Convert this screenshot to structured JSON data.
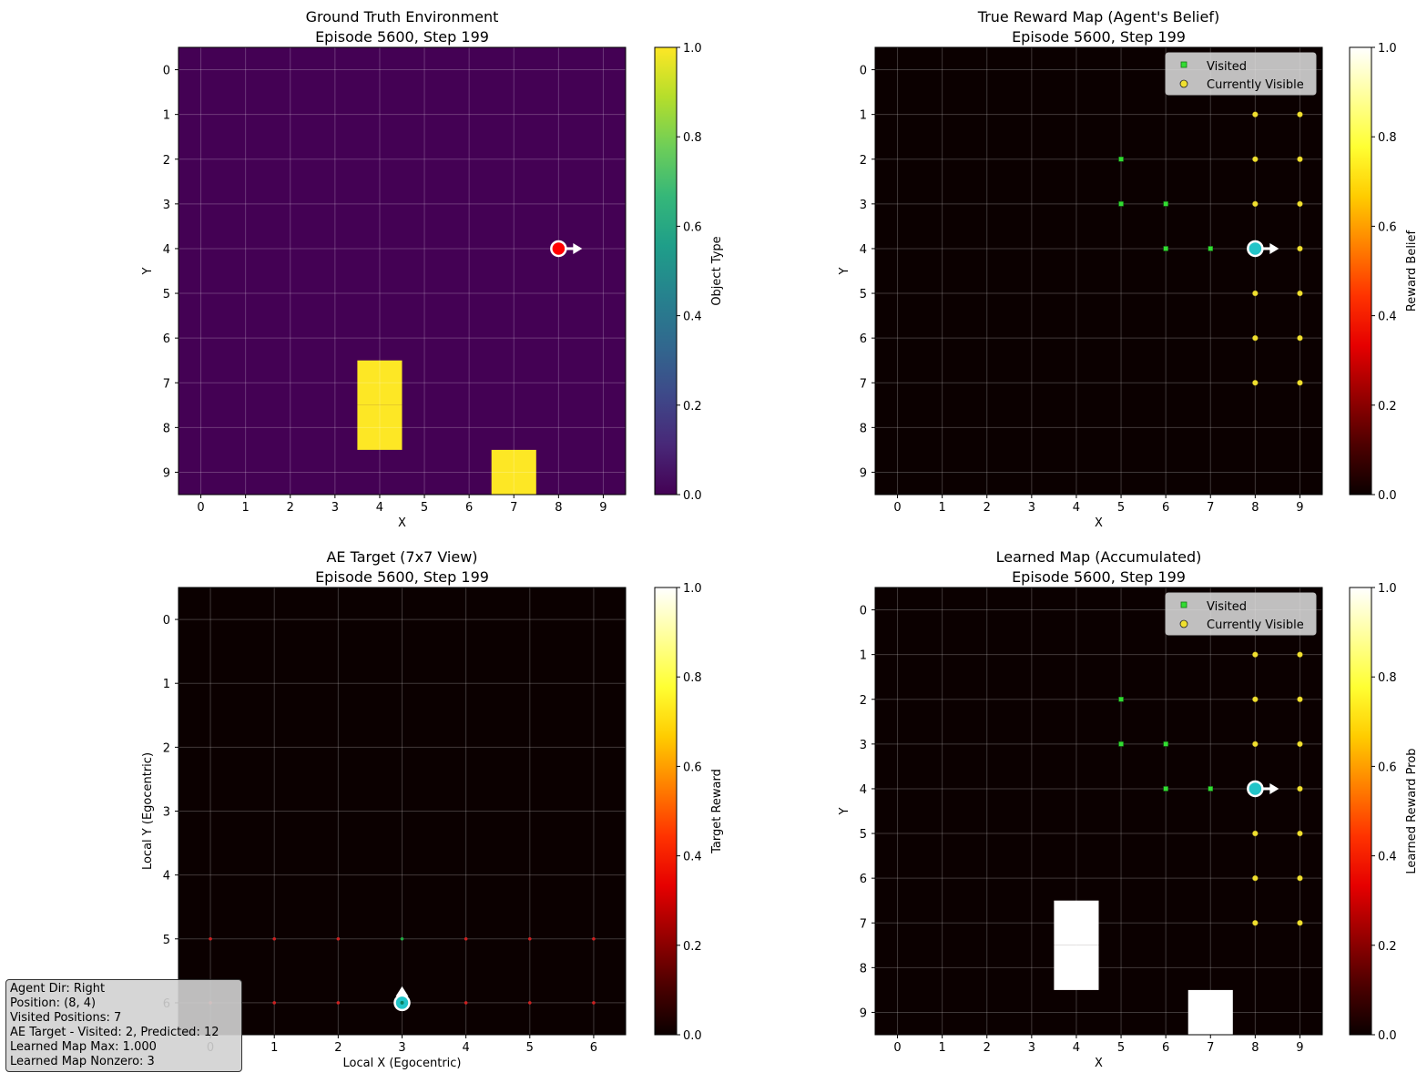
{
  "info": {
    "agent_dir": "Agent Dir: Right",
    "position": "Position: (8, 4)",
    "visited": "Visited Positions: 7",
    "ae_target": "AE Target - Visited: 2, Predicted: 12",
    "map_max": "Learned Map Max: 1.000",
    "map_nonzero": "Learned Map Nonzero: 3"
  },
  "chart_data": [
    {
      "type": "heatmap",
      "title": "Ground Truth Environment",
      "subtitle": "Episode 5600, Step 199",
      "xlabel": "X",
      "ylabel": "Y",
      "xticks": [
        "0",
        "1",
        "2",
        "3",
        "4",
        "5",
        "6",
        "7",
        "8",
        "9"
      ],
      "yticks": [
        "0",
        "1",
        "2",
        "3",
        "4",
        "5",
        "6",
        "7",
        "8",
        "9"
      ],
      "colormap": "viridis",
      "colorbar": {
        "label": "Object Type",
        "ticks": [
          "0.0",
          "0.2",
          "0.4",
          "0.6",
          "0.8",
          "1.0"
        ],
        "range": [
          0,
          1
        ]
      },
      "grid": true,
      "nonzero_cells": [
        [
          4,
          7,
          1.0
        ],
        [
          4,
          8,
          1.0
        ],
        [
          7,
          9,
          1.0
        ]
      ],
      "agent": {
        "x": 8,
        "y": 4,
        "color": "#ff0000",
        "direction": "right"
      }
    },
    {
      "type": "heatmap",
      "title": "True Reward Map (Agent's Belief)",
      "subtitle": "Episode 5600, Step 199",
      "xlabel": "X",
      "ylabel": "Y",
      "xticks": [
        "0",
        "1",
        "2",
        "3",
        "4",
        "5",
        "6",
        "7",
        "8",
        "9"
      ],
      "yticks": [
        "0",
        "1",
        "2",
        "3",
        "4",
        "5",
        "6",
        "7",
        "8",
        "9"
      ],
      "colormap": "hot",
      "colorbar": {
        "label": "Reward Belief",
        "ticks": [
          "0.0",
          "0.2",
          "0.4",
          "0.6",
          "0.8",
          "1.0"
        ],
        "range": [
          0,
          1
        ]
      },
      "grid": true,
      "nonzero_cells": [],
      "visited": [
        [
          5,
          2
        ],
        [
          5,
          3
        ],
        [
          6,
          3
        ],
        [
          6,
          4
        ],
        [
          7,
          4
        ]
      ],
      "visible": [
        [
          8,
          1
        ],
        [
          9,
          1
        ],
        [
          8,
          2
        ],
        [
          9,
          2
        ],
        [
          8,
          3
        ],
        [
          9,
          3
        ],
        [
          9,
          4
        ],
        [
          8,
          5
        ],
        [
          9,
          5
        ],
        [
          8,
          6
        ],
        [
          9,
          6
        ],
        [
          8,
          7
        ],
        [
          9,
          7
        ]
      ],
      "legend": {
        "position": "upper right",
        "visited": "Visited",
        "visible": "Currently Visible"
      },
      "agent": {
        "x": 8,
        "y": 4,
        "color": "#22c4c8",
        "direction": "right"
      }
    },
    {
      "type": "heatmap",
      "title": "AE Target (7x7 View)",
      "subtitle": "Episode 5600, Step 199",
      "xlabel": "Local X (Egocentric)",
      "ylabel": "Local Y (Egocentric)",
      "xticks": [
        "0",
        "1",
        "2",
        "3",
        "4",
        "5",
        "6"
      ],
      "yticks": [
        "0",
        "1",
        "2",
        "3",
        "4",
        "5",
        "6"
      ],
      "colormap": "hot",
      "colorbar": {
        "label": "Target Reward",
        "ticks": [
          "0.0",
          "0.2",
          "0.4",
          "0.6",
          "0.8",
          "1.0"
        ],
        "range": [
          0,
          1
        ]
      },
      "grid": true,
      "nonzero_cells": [],
      "red_points": [
        [
          0,
          5
        ],
        [
          1,
          5
        ],
        [
          2,
          5
        ],
        [
          4,
          5
        ],
        [
          5,
          5
        ],
        [
          6,
          5
        ],
        [
          0,
          6
        ],
        [
          1,
          6
        ],
        [
          2,
          6
        ],
        [
          4,
          6
        ],
        [
          5,
          6
        ],
        [
          6,
          6
        ]
      ],
      "green_points": [
        [
          3,
          5
        ],
        [
          3,
          6
        ]
      ],
      "agent": {
        "x": 3,
        "y": 6,
        "color": "#22c4c8",
        "direction": "up"
      }
    },
    {
      "type": "heatmap",
      "title": "Learned Map (Accumulated)",
      "subtitle": "Episode 5600, Step 199",
      "xlabel": "X",
      "ylabel": "Y",
      "xticks": [
        "0",
        "1",
        "2",
        "3",
        "4",
        "5",
        "6",
        "7",
        "8",
        "9"
      ],
      "yticks": [
        "0",
        "1",
        "2",
        "3",
        "4",
        "5",
        "6",
        "7",
        "8",
        "9"
      ],
      "colormap": "hot",
      "colorbar": {
        "label": "Learned Reward Prob",
        "ticks": [
          "0.0",
          "0.2",
          "0.4",
          "0.6",
          "0.8",
          "1.0"
        ],
        "range": [
          0,
          1
        ]
      },
      "grid": true,
      "nonzero_cells": [
        [
          4,
          7,
          1.0
        ],
        [
          4,
          8,
          1.0
        ],
        [
          7,
          9,
          1.0
        ]
      ],
      "visited": [
        [
          5,
          2
        ],
        [
          5,
          3
        ],
        [
          6,
          3
        ],
        [
          6,
          4
        ],
        [
          7,
          4
        ]
      ],
      "visible": [
        [
          8,
          1
        ],
        [
          9,
          1
        ],
        [
          8,
          2
        ],
        [
          9,
          2
        ],
        [
          8,
          3
        ],
        [
          9,
          3
        ],
        [
          9,
          4
        ],
        [
          8,
          5
        ],
        [
          9,
          5
        ],
        [
          8,
          6
        ],
        [
          9,
          6
        ],
        [
          8,
          7
        ],
        [
          9,
          7
        ]
      ],
      "legend": {
        "position": "upper right",
        "visited": "Visited",
        "visible": "Currently Visible"
      },
      "agent": {
        "x": 8,
        "y": 4,
        "color": "#22c4c8",
        "direction": "right"
      }
    }
  ]
}
